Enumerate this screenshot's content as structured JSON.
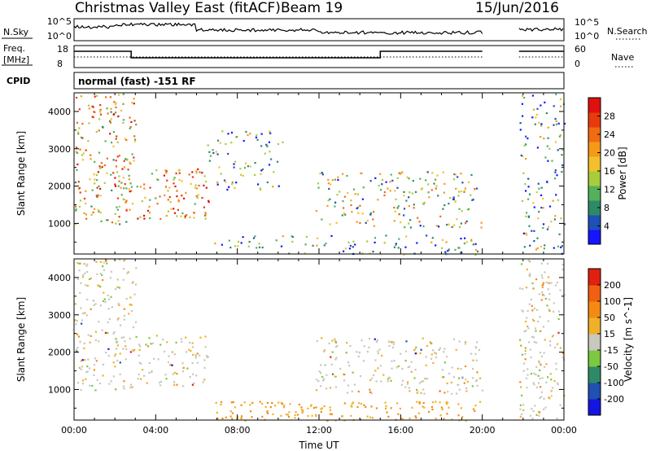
{
  "header": {
    "station": "Christmas Valley East (fitACF)",
    "beam": "Beam 19",
    "date": "15/Jun/2016"
  },
  "strips": {
    "nsky": {
      "left_label": "N.Sky",
      "left_ticks": [
        "10^5",
        "10^0"
      ],
      "right_ticks": [
        "10^5",
        "10^0"
      ],
      "right_label": "N.Search"
    },
    "freq": {
      "left_label_1": "Freq.",
      "left_label_2": "[MHz]",
      "left_ticks": [
        "18",
        "8"
      ],
      "right_ticks": [
        "60",
        "0"
      ],
      "right_label": "Nave"
    },
    "cpid": {
      "label": "CPID",
      "text": "normal (fast) -151 RF"
    }
  },
  "chart_data": [
    {
      "type": "heatmap",
      "name": "power-panel",
      "ylabel": "Slant Range [km]",
      "xlabel": "",
      "y_ticks": [
        "1000",
        "2000",
        "3000",
        "4000"
      ],
      "ylim": [
        180,
        4500
      ],
      "xlim": [
        0,
        24
      ],
      "colorbar_label": "Power [dB]",
      "colorbar_ticks": [
        "4",
        "8",
        "12",
        "16",
        "20",
        "24",
        "28"
      ],
      "colorbar_colors": [
        "#1515ff",
        "#1f4fb8",
        "#2e8a66",
        "#55b05a",
        "#a8cc3c",
        "#f2c02c",
        "#f59a18",
        "#f06c12",
        "#e83a0e",
        "#e01010"
      ],
      "echo_regions": [
        {
          "t": [
            0.0,
            3.0
          ],
          "range": [
            1000,
            4500
          ],
          "level": 0.6
        },
        {
          "t": [
            3.0,
            6.6
          ],
          "range": [
            1100,
            2500
          ],
          "level": 0.7
        },
        {
          "t": [
            6.5,
            10.2
          ],
          "range": [
            1900,
            3500
          ],
          "level": 0.3
        },
        {
          "t": [
            11.8,
            20.0
          ],
          "range": [
            900,
            2400
          ],
          "level": 0.4
        },
        {
          "t": [
            6.8,
            20.0
          ],
          "range": [
            180,
            700
          ],
          "level": 0.3
        },
        {
          "t": [
            21.8,
            24.0
          ],
          "range": [
            200,
            4500
          ],
          "level": 0.3
        }
      ]
    },
    {
      "type": "heatmap",
      "name": "velocity-panel",
      "ylabel": "Slant Range [km]",
      "xlabel": "Time UT",
      "y_ticks": [
        "1000",
        "2000",
        "3000",
        "4000"
      ],
      "x_ticks": [
        "00:00",
        "04:00",
        "08:00",
        "12:00",
        "16:00",
        "20:00",
        "00:00"
      ],
      "ylim": [
        180,
        4500
      ],
      "xlim": [
        0,
        24
      ],
      "colorbar_label": "Velocity [m s^-1]",
      "colorbar_ticks": [
        "200",
        "100",
        "50",
        "15",
        "-15",
        "-50",
        "-100",
        "-200"
      ],
      "colorbar_colors": [
        "#1515e0",
        "#2050b0",
        "#2e8a66",
        "#7cc840",
        "#c8c8be",
        "#f0b028",
        "#f48a14",
        "#f06010",
        "#e02010"
      ],
      "echo_regions": [
        {
          "t": [
            0.0,
            3.0
          ],
          "range": [
            1000,
            4500
          ],
          "level": 0.5
        },
        {
          "t": [
            3.0,
            6.6
          ],
          "range": [
            1100,
            2500
          ],
          "level": 0.5
        },
        {
          "t": [
            11.8,
            20.0
          ],
          "range": [
            900,
            2400
          ],
          "level": 0.5
        },
        {
          "t": [
            6.8,
            20.0
          ],
          "range": [
            180,
            700
          ],
          "level": 0.8
        },
        {
          "t": [
            21.8,
            24.0
          ],
          "range": [
            200,
            4500
          ],
          "level": 0.5
        }
      ]
    }
  ]
}
